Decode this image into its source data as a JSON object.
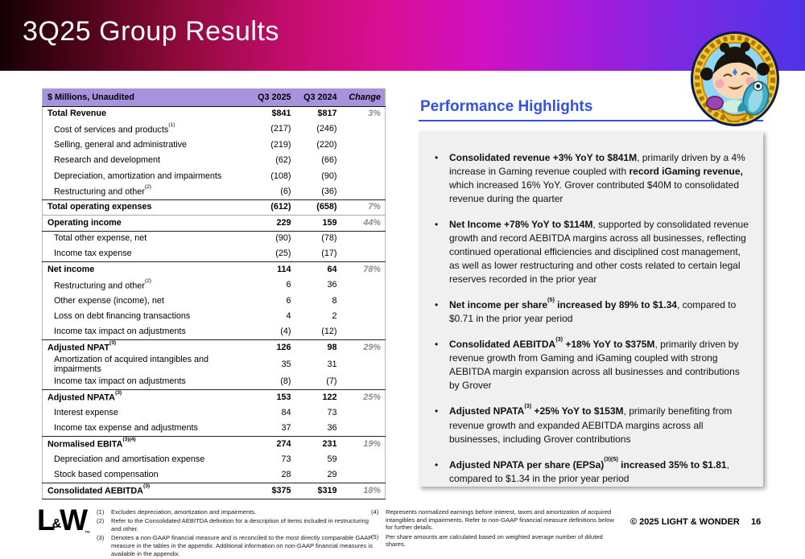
{
  "header": {
    "title": "3Q25 Group Results"
  },
  "colors": {
    "accent_blue": "#3251e8",
    "table_header_bg": "#a792de",
    "box_gray": "#f0f0f0",
    "change_gray": "#8c8c8c",
    "banner_gradient_stops": [
      "#140006",
      "#8c0a38",
      "#d90f95",
      "#d011c4",
      "#7c28e2",
      "#4f33e8"
    ]
  },
  "mascot": {
    "icon": "coin-baby-with-fish-badge"
  },
  "table": {
    "columns": [
      "$ Millions, Unaudited",
      "Q3 2025",
      "Q3 2024",
      "Change"
    ],
    "rows": [
      {
        "label": "Total Revenue",
        "v1": "$841",
        "v2": "$817",
        "chg": "3%",
        "b": true
      },
      {
        "label": "Cost of services and products",
        "sup": "(1)",
        "v1": "(217)",
        "v2": "(246)"
      },
      {
        "label": "Selling, general and administrative",
        "v1": "(219)",
        "v2": "(220)"
      },
      {
        "label": "Research and development",
        "v1": "(62)",
        "v2": "(66)"
      },
      {
        "label": "Depreciation, amortization and impairments",
        "v1": "(108)",
        "v2": "(90)"
      },
      {
        "label": "Restructuring and other",
        "sup": "(2)",
        "v1": "(6)",
        "v2": "(36)",
        "sep": true
      },
      {
        "label": "Total operating expenses",
        "v1": "(612)",
        "v2": "(658)",
        "chg": "7%",
        "b": true,
        "thin": true
      },
      {
        "label": "Operating income",
        "v1": "229",
        "v2": "159",
        "chg": "44%",
        "b": true,
        "sep": true
      },
      {
        "label": "Total other expense, net",
        "v1": "(90)",
        "v2": "(78)"
      },
      {
        "label": "Income tax expense",
        "v1": "(25)",
        "v2": "(17)",
        "sep": true
      },
      {
        "label": "Net income",
        "v1": "114",
        "v2": "64",
        "chg": "78%",
        "b": true
      },
      {
        "label": "Restructuring and other",
        "sup": "(2)",
        "v1": "6",
        "v2": "36"
      },
      {
        "label": "Other expense (income), net",
        "v1": "6",
        "v2": "8"
      },
      {
        "label": "Loss on debt financing transactions",
        "v1": "4",
        "v2": "2"
      },
      {
        "label": "Income tax impact on adjustments",
        "v1": "(4)",
        "v2": "(12)",
        "sep": true
      },
      {
        "label": "Adjusted NPAT",
        "sup": "(3)",
        "v1": "126",
        "v2": "98",
        "chg": "29%",
        "b": true
      },
      {
        "label": "Amortization of acquired intangibles and impairments",
        "v1": "35",
        "v2": "31"
      },
      {
        "label": "Income tax impact on adjustments",
        "v1": "(8)",
        "v2": "(7)",
        "sep": true
      },
      {
        "label": "Adjusted NPATA",
        "sup": "(3)",
        "v1": "153",
        "v2": "122",
        "chg": "25%",
        "b": true
      },
      {
        "label": "Interest expense",
        "v1": "84",
        "v2": "73"
      },
      {
        "label": "Income tax expense and adjustments",
        "v1": "37",
        "v2": "36",
        "sep": true
      },
      {
        "label": "Normalised EBITA",
        "sup": "(3)(4)",
        "v1": "274",
        "v2": "231",
        "chg": "19%",
        "b": true
      },
      {
        "label": "Depreciation and amortisation expense",
        "v1": "73",
        "v2": "59"
      },
      {
        "label": "Stock based compensation",
        "v1": "28",
        "v2": "29",
        "sep": true
      },
      {
        "label": "Consolidated AEBITDA",
        "sup": "(3)",
        "v1": "$375",
        "v2": "$319",
        "chg": "18%",
        "b": true,
        "sep": true
      }
    ]
  },
  "highlights": {
    "title": "Performance Highlights",
    "bullets": [
      [
        {
          "t": "Consolidated revenue +3% YoY to $841M",
          "b": true
        },
        {
          "t": ", primarily driven by a 4% increase in Gaming revenue coupled with "
        },
        {
          "t": "record iGaming revenue,",
          "b": true
        },
        {
          "t": " which increased 16% YoY. Grover contributed $40M to consolidated revenue during the quarter"
        }
      ],
      [
        {
          "t": "Net Income +78% YoY to $114M",
          "b": true
        },
        {
          "t": ", supported by consolidated revenue growth and record AEBITDA margins across all businesses, reflecting continued operational efficiencies and disciplined cost management, as well as lower restructuring and other costs related to certain legal reserves recorded in the prior year"
        }
      ],
      [
        {
          "t": "Net income per share",
          "b": true
        },
        {
          "t": "(5)",
          "b": true,
          "s": true
        },
        {
          "t": " increased by 89% to $1.34",
          "b": true
        },
        {
          "t": ", compared to $0.71 in the prior year period"
        }
      ],
      [
        {
          "t": "Consolidated AEBITDA",
          "b": true
        },
        {
          "t": "(3)",
          "b": true,
          "s": true
        },
        {
          "t": " +18% YoY to $375M",
          "b": true
        },
        {
          "t": ", primarily driven by revenue growth from Gaming and iGaming coupled with strong AEBITDA margin expansion across all businesses and contributions by Grover"
        }
      ],
      [
        {
          "t": "Adjusted NPATA",
          "b": true
        },
        {
          "t": "(3)",
          "b": true,
          "s": true
        },
        {
          "t": " +25% YoY to $153M",
          "b": true
        },
        {
          "t": ", primarily benefiting from revenue growth and expanded AEBITDA margins across all businesses, including Grover contributions"
        }
      ],
      [
        {
          "t": "Adjusted NPATA per share (EPSa)",
          "b": true
        },
        {
          "t": "(3)(5)",
          "b": true,
          "s": true
        },
        {
          "t": " increased 35% to $1.81",
          "b": true
        },
        {
          "t": ", compared to $1.34 in the prior year period"
        }
      ]
    ]
  },
  "footer": {
    "logo": {
      "l": "L",
      "amp": "&",
      "w": "W",
      "tm": "™"
    },
    "notes_left": [
      {
        "num": "(1)",
        "text": "Excludes depreciation, amortization and impairments."
      },
      {
        "num": "(2)",
        "text": "Refer to the Consolidated AEBITDA definition for a description of items included in restructuring and other."
      },
      {
        "num": "(3)",
        "text": "Denotes a non-GAAP financial measure and is reconciled to the most directly comparable GAAP measure in the tables in the appendix. Additional information on non-GAAP financial measures is available in the appendix."
      }
    ],
    "notes_right": [
      {
        "num": "(4)",
        "text": "Represents normalized earnings before interest, taxes and amortization of acquired intangibles and impairments. Refer to non-GAAP financial measure definitions below for further details."
      },
      {
        "num": "(5)",
        "text": "Per share amounts are calculated based on weighted average number of diluted shares."
      }
    ],
    "copyright": "© 2025 LIGHT & WONDER",
    "page": "16"
  }
}
